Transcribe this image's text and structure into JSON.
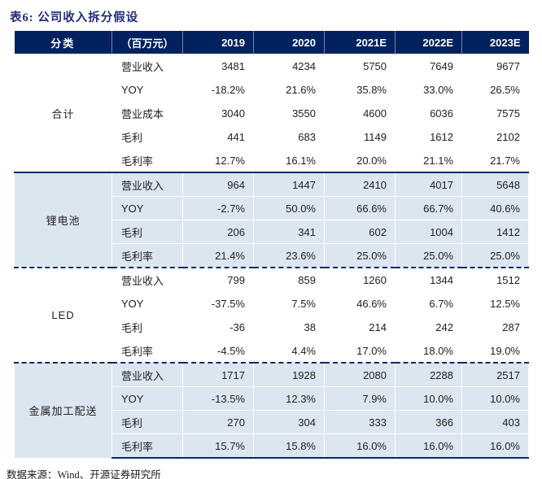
{
  "title": "表6: 公司收入拆分假设",
  "table": {
    "header": {
      "category": "分类",
      "unit": "（百万元）",
      "years": [
        "2019",
        "2020",
        "2021E",
        "2022E",
        "2023E"
      ]
    },
    "sections": [
      {
        "category": "合计",
        "shaded": false,
        "rows": [
          {
            "label": "营业收入",
            "values": [
              "3481",
              "4234",
              "5750",
              "7649",
              "9677"
            ]
          },
          {
            "label": "YOY",
            "values": [
              "-18.2%",
              "21.6%",
              "35.8%",
              "33.0%",
              "26.5%"
            ]
          },
          {
            "label": "营业成本",
            "values": [
              "3040",
              "3550",
              "4600",
              "6036",
              "7575"
            ]
          },
          {
            "label": "毛利",
            "values": [
              "441",
              "683",
              "1149",
              "1612",
              "2102"
            ]
          },
          {
            "label": "毛利率",
            "values": [
              "12.7%",
              "16.1%",
              "20.0%",
              "21.1%",
              "21.7%"
            ]
          }
        ]
      },
      {
        "category": "锂电池",
        "shaded": true,
        "rows": [
          {
            "label": "营业收入",
            "values": [
              "964",
              "1447",
              "2410",
              "4017",
              "5648"
            ]
          },
          {
            "label": "YOY",
            "values": [
              "-2.7%",
              "50.0%",
              "66.6%",
              "66.7%",
              "40.6%"
            ]
          },
          {
            "label": "毛利",
            "values": [
              "206",
              "341",
              "602",
              "1004",
              "1412"
            ]
          },
          {
            "label": "毛利率",
            "values": [
              "21.4%",
              "23.6%",
              "25.0%",
              "25.0%",
              "25.0%"
            ]
          }
        ]
      },
      {
        "category": "LED",
        "shaded": false,
        "rows": [
          {
            "label": "营业收入",
            "values": [
              "799",
              "859",
              "1260",
              "1344",
              "1512"
            ]
          },
          {
            "label": "YOY",
            "values": [
              "-37.5%",
              "7.5%",
              "46.6%",
              "6.7%",
              "12.5%"
            ]
          },
          {
            "label": "毛利",
            "values": [
              "-36",
              "38",
              "214",
              "242",
              "287"
            ]
          },
          {
            "label": "毛利率",
            "values": [
              "-4.5%",
              "4.4%",
              "17.0%",
              "18.0%",
              "19.0%"
            ]
          }
        ]
      },
      {
        "category": "金属加工配送",
        "shaded": true,
        "rows": [
          {
            "label": "营业收入",
            "values": [
              "1717",
              "1928",
              "2080",
              "2288",
              "2517"
            ]
          },
          {
            "label": "YOY",
            "values": [
              "-13.5%",
              "12.3%",
              "7.9%",
              "10.0%",
              "10.0%"
            ]
          },
          {
            "label": "毛利",
            "values": [
              "270",
              "304",
              "333",
              "366",
              "403"
            ]
          },
          {
            "label": "毛利率",
            "values": [
              "15.7%",
              "15.8%",
              "16.0%",
              "16.0%",
              "16.0%"
            ]
          }
        ]
      }
    ]
  },
  "footer": {
    "source": "数据来源：Wind、开源证券研究所"
  },
  "colors": {
    "header_bg": "#02215f",
    "shaded_row_bg": "#dce6f1",
    "title_text": "#1f2c7c",
    "section_border": "#0a2a6b",
    "header_text": "#ffffff"
  }
}
